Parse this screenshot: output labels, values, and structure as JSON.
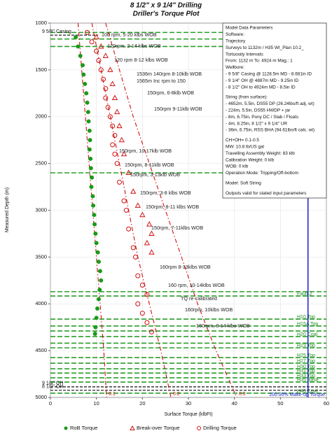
{
  "chart_data": {
    "type": "scatter",
    "title": "8 1/2\" x 9 1/4\" Drilling",
    "subtitle": "Driller's Torque Plot",
    "xlabel": "Surface Torque (klbFt)",
    "ylabel": "Measured Depth (m)",
    "xlim": [
      0,
      60
    ],
    "ylim": [
      1000,
      5000
    ],
    "y_inverted": true,
    "xticks": [
      0,
      10,
      20,
      30,
      40,
      50,
      60
    ],
    "yticks": [
      1000,
      1500,
      2000,
      2500,
      3000,
      3500,
      4000,
      4500,
      5000
    ],
    "grid": true,
    "series": [
      {
        "name": "RoB Torque",
        "color": "#1a9a1a",
        "marker": "filled-circle",
        "x": [
          5.5,
          6,
          6.5,
          7,
          7.2,
          7.5,
          7.8,
          8,
          8.2,
          8.3,
          8.5,
          8.6,
          8.5,
          8.7,
          8.8,
          9,
          8.9,
          9.2,
          9.3,
          9.5,
          9.6,
          9.8,
          10,
          10.3,
          10.5,
          10.8,
          11,
          10.7,
          10.5,
          10.2,
          10,
          9.8,
          9.7
        ],
        "y": [
          1150,
          1250,
          1350,
          1450,
          1550,
          1650,
          1750,
          1850,
          1950,
          2050,
          2150,
          2250,
          2350,
          2450,
          2550,
          2650,
          2750,
          2850,
          2950,
          3050,
          3150,
          3250,
          3350,
          3450,
          3550,
          3650,
          3750,
          3850,
          3950,
          4050,
          4150,
          4250,
          4320
        ]
      },
      {
        "name": "Break-over Torque",
        "color": "#d01010",
        "marker": "open-triangle",
        "x": [
          10,
          11,
          12,
          13,
          13.5,
          14,
          14.5,
          15,
          15.5,
          16,
          17,
          18,
          19,
          20,
          21.5,
          22,
          21,
          22
        ],
        "y": [
          1150,
          1250,
          1350,
          1500,
          1650,
          1800,
          1950,
          2100,
          2250,
          2400,
          2600,
          2800,
          2950,
          3050,
          3150,
          3250,
          3350,
          3450
        ]
      },
      {
        "name": "Drilling Torque",
        "color": "#d01010",
        "marker": "open-circle",
        "x": [
          8,
          9,
          10,
          10.5,
          11,
          11.5,
          12,
          12,
          12.5,
          13,
          13.5,
          14,
          13.5,
          14,
          14.5,
          15,
          16,
          16.5,
          17,
          18,
          18.5,
          19,
          20,
          21,
          19,
          20,
          21,
          22
        ],
        "y": [
          1100,
          1200,
          1300,
          1400,
          1500,
          1600,
          1700,
          1800,
          1900,
          2000,
          2100,
          2200,
          2300,
          2400,
          2500,
          2700,
          2900,
          3000,
          3200,
          3400,
          3500,
          3700,
          3800,
          3900,
          4000,
          4100,
          4200,
          4300
        ]
      }
    ],
    "friction_lines": [
      {
        "name": "0.1",
        "color": "#d01010",
        "x": [
          6,
          6.8,
          7.6,
          8.4,
          9.2,
          10,
          10.8,
          11.6,
          12.2
        ],
        "y": [
          1000,
          1500,
          2000,
          2500,
          3000,
          3500,
          4000,
          4500,
          5000
        ]
      },
      {
        "name": "0.2",
        "color": "#d01010",
        "x": [
          9,
          11,
          13,
          15,
          17,
          19,
          21.5,
          24,
          26.2
        ],
        "y": [
          1000,
          1500,
          2000,
          2500,
          3000,
          3500,
          4000,
          4500,
          5000
        ]
      },
      {
        "name": "0.3",
        "color": "#d01010",
        "x": [
          12,
          15,
          18,
          21.5,
          25,
          28.5,
          32,
          36,
          40.5
        ],
        "y": [
          1000,
          1500,
          2000,
          2500,
          3000,
          3500,
          4000,
          4500,
          5000
        ]
      }
    ],
    "makeup_line": {
      "label": "100.00% Make-up Torque",
      "color": "#1f1fcc",
      "x": 56,
      "y": [
        2780,
        5000
      ]
    },
    "reference_lines": [
      {
        "label": null,
        "depth": 1100
      },
      {
        "label": null,
        "depth": 1170
      },
      {
        "label": null,
        "depth": 1250
      },
      {
        "label": null,
        "depth": 2600
      },
      {
        "label": null,
        "depth": 3870
      },
      {
        "label": "Fault 2",
        "depth": 3916
      },
      {
        "label": "H10 Top",
        "depth": 4163
      },
      {
        "label": "H15A Top",
        "depth": 4237
      },
      {
        "label": null,
        "depth": 4290
      },
      {
        "label": "H20 Coal",
        "depth": 4350
      },
      {
        "label": null,
        "depth": 4420
      },
      {
        "label": "H23 Top",
        "depth": 4470
      },
      {
        "label": "H25 Top",
        "depth": 4574
      },
      {
        "label": "H27 Top",
        "depth": 4634
      },
      {
        "label": "H30 Top",
        "depth": 4694
      },
      {
        "label": "H31 Top",
        "depth": 4740
      },
      {
        "label": "H33 Top",
        "depth": 4790
      },
      {
        "label": "H35 Base",
        "depth": 4836
      },
      {
        "label": "H40 Coal",
        "depth": 4955
      }
    ],
    "casing_lines": [
      {
        "label": "9 5/8\" Casing",
        "depth": 1128.5
      },
      {
        "label": "9 1/4\" OH",
        "depth": 4887
      },
      {
        "label": "8 1/2\" OH",
        "depth": 4924
      }
    ],
    "annotations": [
      "100 rpm, 5-20 klbs WOB",
      "120rpm, 2-14 klbs WOB",
      "120 rpm 8-12 klbs WOB",
      "1536m 140rpm 8-10klb WOB",
      "1565m Inc rpm to 150",
      "150rpm, 6-8klb WOB",
      "150rpm 9-11klb WOB",
      "150rpm, 10-17klb WOB",
      "150rpm, 8-11klb WOB",
      "150rpm, 3-13klb WOB",
      "150rpm, 3-8 klbs WOB",
      "150rpm, 8-11 klbs WOB",
      "150rpm, 7-11klbs WOB",
      "160rpm 8-13klbs WOB",
      "160 rpm, 10-14klbs WOB",
      "TQ re-calibrated",
      "160rpm, 10klbs WOB",
      "160rpm, 8-14 klbs WOB"
    ],
    "parameters": [
      "Model Data Parameters",
      "Software:",
      "Trajectory",
      "Surveys to 1132m / H35 WI_Plan 10.2_",
      "Tortuosity Intervals:",
      "From: 1132 m To: 4924 m Mag.: 1",
      "Wellbore:",
      "- 9 5/8\" Casing  @ 1128.5m MD - 8.681in ID",
      "- 9 1/4\" OH @ 4887m MD - 9.25in ID",
      "- 8 1/2\" OH to 4924m MD - 8.5in ID",
      "String (from surface):",
      "- 4652m, 5.5in, DS55 DP  (26.24lbs/ft adj. wt)",
      "- 224m, 5.5in, DS55 HWDP + jar",
      "- 8m, 6.75in, Pony DC / Stab / Floats",
      "- 4m, 8.25in, 8 1/2\" x 9 1/4\" UR",
      "- 36m, 6.75in, RSS BHA (94.61lbs/ft calc. wt)",
      "CH+OH= 0.1-0.5",
      "MW: 10.8 lb/US gal",
      "Travelling Assembly Weight: 83 klb",
      "Calibration Weight: 0 klb",
      "WOB: 0 klb",
      "Operation Mode: Tripping/Off-bottom",
      "Model: Soft String",
      "Outputs valid for stated input parameters"
    ]
  }
}
